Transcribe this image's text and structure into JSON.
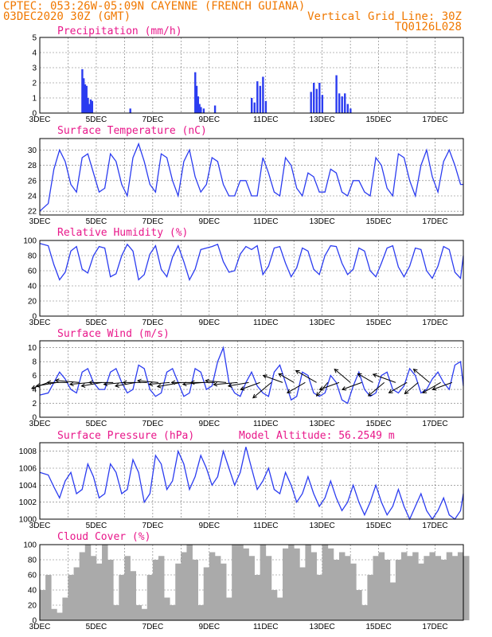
{
  "header": {
    "line1": "CPTEC:  053:26W-05:09N  CAYENNE (FRENCH GUIANA)",
    "line2_left": "03DEC2020 30Z (GMT)",
    "line2_right": "Vertical Grid Line: 30Z",
    "line3_right": "TQ0126L028"
  },
  "x_labels": [
    "3DEC",
    "5DEC",
    "7DEC",
    "9DEC",
    "11DEC",
    "13DEC",
    "15DEC",
    "17DEC"
  ],
  "colors": {
    "series": "#2b3cf0",
    "title": "#e8178a",
    "header": "#f07800",
    "cloud": "#aaaaaa"
  },
  "chart_data": [
    {
      "type": "bar",
      "title": "Precipitation (mm/h)",
      "ylim": [
        0,
        5
      ],
      "yticks": [
        0,
        1,
        2,
        3,
        4,
        5
      ],
      "x": [
        4.5,
        4.55,
        4.6,
        4.65,
        4.7,
        4.75,
        4.8,
        4.85,
        6.2,
        8.5,
        8.55,
        8.6,
        8.65,
        8.7,
        8.8,
        9.2,
        10.5,
        10.6,
        10.7,
        10.8,
        10.9,
        11.0,
        12.6,
        12.7,
        12.8,
        12.9,
        13.0,
        13.5,
        13.6,
        13.7,
        13.8,
        13.9,
        14.0
      ],
      "values": [
        2.9,
        2.3,
        1.9,
        1.8,
        1.0,
        0.6,
        0.9,
        0.8,
        0.3,
        2.7,
        1.8,
        1.1,
        0.6,
        0.4,
        0.3,
        0.5,
        1.0,
        0.7,
        2.1,
        1.8,
        2.4,
        0.8,
        1.4,
        2.0,
        1.6,
        2.0,
        1.2,
        2.5,
        1.3,
        1.1,
        1.3,
        0.6,
        0.3
      ]
    },
    {
      "type": "line",
      "title": "Surface Temperature (nC)",
      "ylim": [
        21.5,
        31.5
      ],
      "yticks": [
        22,
        24,
        26,
        28,
        30
      ],
      "x": [
        3,
        3.3,
        3.5,
        3.7,
        3.9,
        4.1,
        4.3,
        4.5,
        4.7,
        4.9,
        5.1,
        5.3,
        5.5,
        5.7,
        5.9,
        6.1,
        6.3,
        6.5,
        6.7,
        6.9,
        7.1,
        7.3,
        7.5,
        7.7,
        7.9,
        8.1,
        8.3,
        8.5,
        8.7,
        8.9,
        9.1,
        9.3,
        9.5,
        9.7,
        9.9,
        10.1,
        10.3,
        10.5,
        10.7,
        10.9,
        11.1,
        11.3,
        11.5,
        11.7,
        11.9,
        12.1,
        12.3,
        12.5,
        12.7,
        12.9,
        13.1,
        13.3,
        13.5,
        13.7,
        13.9,
        14.1,
        14.3,
        14.5,
        14.7,
        14.9,
        15.1,
        15.3,
        15.5,
        15.7,
        15.9,
        16.1,
        16.3,
        16.5,
        16.7,
        16.9,
        17.1,
        17.3,
        17.5,
        17.7,
        17.9,
        18.0
      ],
      "values": [
        22.0,
        23.0,
        27.5,
        30.0,
        28.5,
        25.5,
        24.5,
        29.0,
        29.5,
        27.0,
        24.5,
        25.0,
        29.5,
        28.5,
        25.5,
        24.0,
        29.0,
        30.8,
        28.5,
        25.5,
        24.5,
        29.5,
        29.0,
        26.0,
        24.0,
        28.5,
        30.0,
        26.5,
        24.5,
        25.5,
        29.0,
        28.5,
        25.5,
        24.0,
        24.0,
        26.0,
        26.0,
        24.0,
        24.0,
        29.0,
        27.0,
        24.5,
        24.0,
        29.0,
        28.0,
        25.0,
        24.0,
        27.0,
        26.5,
        24.5,
        24.5,
        27.5,
        27.0,
        24.5,
        24.0,
        26.0,
        26.0,
        24.5,
        24.0,
        29.0,
        28.0,
        25.0,
        24.0,
        29.5,
        29.0,
        26.0,
        24.0,
        28.0,
        30.0,
        26.5,
        24.5,
        28.5,
        30.0,
        28.0,
        25.5,
        25.5
      ]
    },
    {
      "type": "line",
      "title": "Relative Humidity (%)",
      "ylim": [
        0,
        100
      ],
      "yticks": [
        0,
        20,
        40,
        60,
        80,
        100
      ],
      "x": [
        3,
        3.3,
        3.5,
        3.7,
        3.9,
        4.1,
        4.3,
        4.5,
        4.7,
        4.9,
        5.1,
        5.3,
        5.5,
        5.7,
        5.9,
        6.1,
        6.3,
        6.5,
        6.7,
        6.9,
        7.1,
        7.3,
        7.5,
        7.7,
        7.9,
        8.1,
        8.3,
        8.5,
        8.7,
        8.9,
        9.1,
        9.3,
        9.5,
        9.7,
        9.9,
        10.1,
        10.3,
        10.5,
        10.7,
        10.9,
        11.1,
        11.3,
        11.5,
        11.7,
        11.9,
        12.1,
        12.3,
        12.5,
        12.7,
        12.9,
        13.1,
        13.3,
        13.5,
        13.7,
        13.9,
        14.1,
        14.3,
        14.5,
        14.7,
        14.9,
        15.1,
        15.3,
        15.5,
        15.7,
        15.9,
        16.1,
        16.3,
        16.5,
        16.7,
        16.9,
        17.1,
        17.3,
        17.5,
        17.7,
        17.9,
        18.0
      ],
      "values": [
        96,
        93,
        68,
        48,
        58,
        86,
        92,
        62,
        57,
        80,
        92,
        90,
        52,
        56,
        80,
        95,
        86,
        48,
        55,
        82,
        93,
        62,
        52,
        78,
        93,
        72,
        48,
        62,
        88,
        90,
        92,
        95,
        72,
        58,
        60,
        82,
        92,
        88,
        93,
        55,
        66,
        90,
        92,
        70,
        52,
        64,
        90,
        86,
        62,
        55,
        80,
        93,
        92,
        70,
        55,
        62,
        90,
        86,
        60,
        52,
        70,
        90,
        93,
        65,
        52,
        66,
        90,
        88,
        60,
        50,
        66,
        92,
        88,
        58,
        50,
        80
      ]
    },
    {
      "type": "line",
      "title": "Surface Wind (m/s)",
      "ylim": [
        0,
        11
      ],
      "yticks": [
        0,
        2,
        4,
        6,
        8,
        10
      ],
      "x": [
        3,
        3.3,
        3.5,
        3.7,
        3.9,
        4.1,
        4.3,
        4.5,
        4.7,
        4.9,
        5.1,
        5.3,
        5.5,
        5.7,
        5.9,
        6.1,
        6.3,
        6.5,
        6.7,
        6.9,
        7.1,
        7.3,
        7.5,
        7.7,
        7.9,
        8.1,
        8.3,
        8.5,
        8.7,
        8.9,
        9.1,
        9.3,
        9.5,
        9.7,
        9.9,
        10.1,
        10.3,
        10.5,
        10.7,
        10.9,
        11.1,
        11.3,
        11.5,
        11.7,
        11.9,
        12.1,
        12.3,
        12.5,
        12.7,
        12.9,
        13.1,
        13.3,
        13.5,
        13.7,
        13.9,
        14.1,
        14.3,
        14.5,
        14.7,
        14.9,
        15.1,
        15.3,
        15.5,
        15.7,
        15.9,
        16.1,
        16.3,
        16.5,
        16.7,
        16.9,
        17.1,
        17.3,
        17.5,
        17.7,
        17.9,
        18.0
      ],
      "values": [
        3.2,
        3.5,
        5.0,
        6.5,
        5.5,
        4.0,
        3.5,
        6.5,
        7.0,
        5.0,
        4.0,
        4.0,
        6.5,
        7.0,
        5.0,
        3.5,
        4.0,
        7.5,
        7.0,
        4.0,
        3.0,
        3.5,
        6.5,
        7.0,
        5.0,
        3.0,
        3.5,
        7.0,
        6.5,
        4.0,
        4.5,
        8.0,
        10.0,
        5.0,
        3.5,
        3.0,
        5.0,
        6.5,
        4.5,
        3.5,
        3.0,
        6.5,
        7.5,
        5.0,
        2.5,
        3.0,
        6.5,
        6.0,
        3.5,
        3.0,
        3.5,
        6.0,
        5.0,
        2.5,
        2.0,
        4.5,
        6.5,
        4.0,
        3.0,
        3.5,
        6.0,
        6.5,
        4.0,
        3.5,
        4.5,
        7.0,
        6.0,
        3.5,
        4.0,
        5.5,
        6.5,
        5.0,
        4.0,
        7.5,
        8.0,
        4.5
      ]
    },
    {
      "type": "line",
      "title": "Surface Pressure (hPa)",
      "annotation": "Model Altitude: 56.2549 m",
      "ylim": [
        1000,
        1009
      ],
      "yticks": [
        1000,
        1002,
        1004,
        1006,
        1008
      ],
      "x": [
        3,
        3.3,
        3.5,
        3.7,
        3.9,
        4.1,
        4.3,
        4.5,
        4.7,
        4.9,
        5.1,
        5.3,
        5.5,
        5.7,
        5.9,
        6.1,
        6.3,
        6.5,
        6.7,
        6.9,
        7.1,
        7.3,
        7.5,
        7.7,
        7.9,
        8.1,
        8.3,
        8.5,
        8.7,
        8.9,
        9.1,
        9.3,
        9.5,
        9.7,
        9.9,
        10.1,
        10.3,
        10.5,
        10.7,
        10.9,
        11.1,
        11.3,
        11.5,
        11.7,
        11.9,
        12.1,
        12.3,
        12.5,
        12.7,
        12.9,
        13.1,
        13.3,
        13.5,
        13.7,
        13.9,
        14.1,
        14.3,
        14.5,
        14.7,
        14.9,
        15.1,
        15.3,
        15.5,
        15.7,
        15.9,
        16.1,
        16.3,
        16.5,
        16.7,
        16.9,
        17.1,
        17.3,
        17.5,
        17.7,
        17.9,
        18.0
      ],
      "values": [
        1005.5,
        1005.2,
        1003.8,
        1002.5,
        1004.5,
        1005.5,
        1003.0,
        1003.5,
        1006.5,
        1005.0,
        1002.5,
        1003.0,
        1006.5,
        1005.5,
        1003.0,
        1003.5,
        1007.0,
        1005.5,
        1002.0,
        1003.0,
        1007.5,
        1006.5,
        1003.5,
        1004.5,
        1008.0,
        1006.5,
        1003.5,
        1005.0,
        1007.5,
        1006.0,
        1004.0,
        1005.0,
        1008.0,
        1006.0,
        1004.0,
        1005.5,
        1008.5,
        1006.0,
        1003.5,
        1004.5,
        1006.0,
        1003.5,
        1003.0,
        1005.5,
        1004.0,
        1002.0,
        1003.0,
        1005.0,
        1003.0,
        1001.5,
        1002.5,
        1004.5,
        1002.5,
        1001.0,
        1002.0,
        1004.0,
        1002.0,
        1000.5,
        1002.0,
        1004.0,
        1002.0,
        1000.5,
        1001.5,
        1003.5,
        1001.5,
        1000.0,
        1001.5,
        1003.0,
        1001.0,
        1000.0,
        1001.0,
        1002.5,
        1000.5,
        1000.0,
        1001.0,
        1003.0
      ]
    },
    {
      "type": "area",
      "title": "Cloud Cover (%)",
      "ylim": [
        0,
        100
      ],
      "yticks": [
        0,
        20,
        40,
        60,
        80,
        100
      ],
      "x": [
        3,
        3.2,
        3.4,
        3.6,
        3.8,
        4.0,
        4.2,
        4.4,
        4.6,
        4.8,
        5.0,
        5.2,
        5.4,
        5.6,
        5.8,
        6.0,
        6.2,
        6.4,
        6.6,
        6.8,
        7.0,
        7.2,
        7.4,
        7.6,
        7.8,
        8.0,
        8.2,
        8.4,
        8.6,
        8.8,
        9.0,
        9.2,
        9.4,
        9.6,
        9.8,
        10.0,
        10.2,
        10.4,
        10.6,
        10.8,
        11.0,
        11.2,
        11.4,
        11.6,
        11.8,
        12.0,
        12.2,
        12.4,
        12.6,
        12.8,
        13.0,
        13.2,
        13.4,
        13.6,
        13.8,
        14.0,
        14.2,
        14.4,
        14.6,
        14.8,
        15.0,
        15.2,
        15.4,
        15.6,
        15.8,
        16.0,
        16.2,
        16.4,
        16.6,
        16.8,
        17.0,
        17.2,
        17.4,
        17.6,
        17.8,
        18.0
      ],
      "values": [
        40,
        60,
        15,
        10,
        30,
        60,
        70,
        90,
        100,
        85,
        75,
        100,
        80,
        20,
        60,
        85,
        65,
        20,
        15,
        60,
        80,
        85,
        30,
        20,
        75,
        90,
        100,
        80,
        20,
        70,
        90,
        85,
        75,
        30,
        100,
        100,
        95,
        85,
        60,
        100,
        85,
        40,
        30,
        95,
        100,
        95,
        70,
        100,
        90,
        60,
        100,
        95,
        80,
        90,
        85,
        75,
        40,
        20,
        60,
        85,
        90,
        80,
        50,
        80,
        90,
        85,
        90,
        75,
        85,
        90,
        85,
        80,
        90,
        85,
        90,
        85
      ]
    }
  ],
  "wind_arrows": {
    "x": [
      3.3,
      3.6,
      4.0,
      4.4,
      4.8,
      5.2,
      5.6,
      6.0,
      6.4,
      6.8,
      7.2,
      7.6,
      8.0,
      8.4,
      8.8,
      9.2,
      9.6,
      10.0,
      10.4,
      10.8,
      11.2,
      11.6,
      12.0,
      12.4,
      12.8,
      13.2,
      13.6,
      14.0,
      14.4,
      14.8,
      15.2,
      15.6,
      16.0,
      16.4,
      16.8,
      17.2,
      17.6
    ],
    "angle_deg": [
      200,
      190,
      180,
      175,
      185,
      190,
      180,
      185,
      190,
      180,
      175,
      185,
      190,
      180,
      185,
      180,
      175,
      185,
      190,
      200,
      220,
      160,
      150,
      210,
      150,
      230,
      200,
      140,
      200,
      150,
      220,
      160,
      210,
      220,
      140,
      210,
      200
    ],
    "speed": [
      3,
      4,
      4,
      5,
      4,
      4,
      5,
      4,
      4,
      5,
      4,
      4,
      5,
      4,
      4,
      5,
      4,
      5,
      4,
      4,
      5,
      4,
      3,
      4,
      5,
      3,
      4,
      4,
      4,
      3,
      4,
      5,
      4,
      3,
      4,
      4,
      4
    ]
  }
}
